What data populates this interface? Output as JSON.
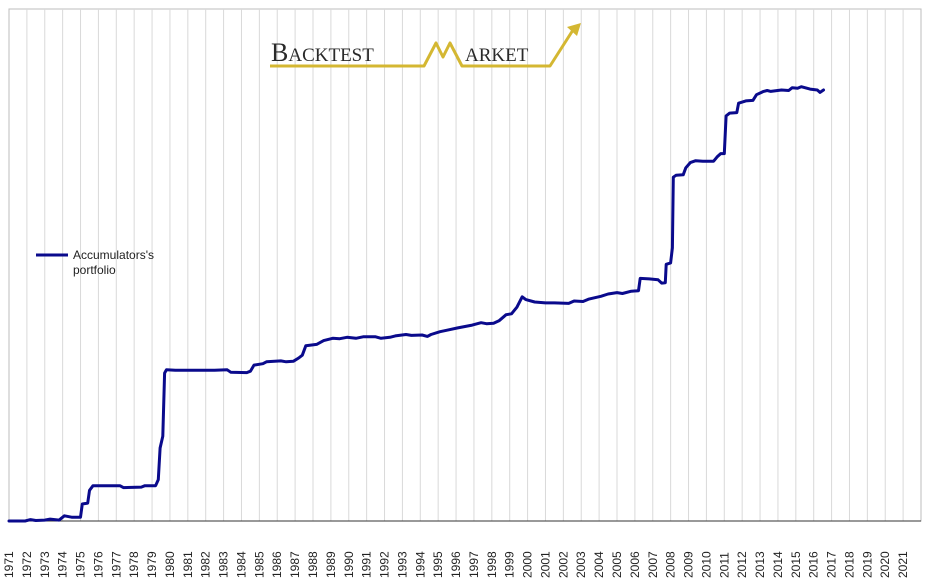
{
  "chart_data": {
    "type": "line",
    "title": "",
    "xlabel": "",
    "ylabel": "",
    "xlim": [
      1971,
      2022
    ],
    "ylim": [
      0,
      100
    ],
    "grid": {
      "vertical": true,
      "horizontal": false
    },
    "legend": {
      "placement": "left",
      "entries": [
        "Accumulators's",
        "portfolio"
      ]
    },
    "series_color": "#0a0a8c",
    "x_tick_labels": [
      "1971",
      "1972",
      "1973",
      "1974",
      "1975",
      "1976",
      "1977",
      "1978",
      "1979",
      "1980",
      "1981",
      "1982",
      "1983",
      "1984",
      "1985",
      "1986",
      "1987",
      "1988",
      "1989",
      "1990",
      "1991",
      "1992",
      "1993",
      "1994",
      "1995",
      "1996",
      "1997",
      "1998",
      "1999",
      "2000",
      "2001",
      "2002",
      "2003",
      "2004",
      "2005",
      "2006",
      "2007",
      "2008",
      "2009",
      "2010",
      "2011",
      "2012",
      "2013",
      "2014",
      "2015",
      "2016",
      "2017",
      "2018",
      "2019",
      "2020",
      "2021"
    ],
    "series": [
      {
        "name": "Accumulators's portfolio",
        "points": [
          [
            1971.0,
            0.0
          ],
          [
            1971.9,
            0.0
          ],
          [
            1972.2,
            0.3
          ],
          [
            1972.5,
            0.1
          ],
          [
            1973.0,
            0.2
          ],
          [
            1973.3,
            0.4
          ],
          [
            1973.8,
            0.2
          ],
          [
            1974.1,
            1.1
          ],
          [
            1974.5,
            0.8
          ],
          [
            1975.0,
            0.8
          ],
          [
            1975.1,
            3.6
          ],
          [
            1975.4,
            3.8
          ],
          [
            1975.5,
            6.5
          ],
          [
            1975.7,
            7.5
          ],
          [
            1977.2,
            7.5
          ],
          [
            1977.4,
            7.1
          ],
          [
            1978.4,
            7.2
          ],
          [
            1978.6,
            7.5
          ],
          [
            1979.2,
            7.5
          ],
          [
            1979.35,
            8.8
          ],
          [
            1979.45,
            15.5
          ],
          [
            1979.6,
            18.0
          ],
          [
            1979.7,
            31.4
          ],
          [
            1979.8,
            32.1
          ],
          [
            1980.3,
            32.0
          ],
          [
            1982.5,
            32.0
          ],
          [
            1983.2,
            32.1
          ],
          [
            1983.4,
            31.6
          ],
          [
            1984.3,
            31.5
          ],
          [
            1984.5,
            31.8
          ],
          [
            1984.7,
            33.1
          ],
          [
            1985.2,
            33.4
          ],
          [
            1985.4,
            33.8
          ],
          [
            1986.2,
            34.0
          ],
          [
            1986.5,
            33.8
          ],
          [
            1986.9,
            33.9
          ],
          [
            1987.2,
            34.6
          ],
          [
            1987.4,
            35.2
          ],
          [
            1987.6,
            37.2
          ],
          [
            1988.2,
            37.5
          ],
          [
            1988.6,
            38.3
          ],
          [
            1989.1,
            38.8
          ],
          [
            1989.5,
            38.7
          ],
          [
            1989.9,
            39.0
          ],
          [
            1990.4,
            38.8
          ],
          [
            1990.8,
            39.1
          ],
          [
            1991.5,
            39.1
          ],
          [
            1991.8,
            38.8
          ],
          [
            1992.3,
            39.0
          ],
          [
            1992.6,
            39.3
          ],
          [
            1993.2,
            39.6
          ],
          [
            1993.5,
            39.4
          ],
          [
            1994.1,
            39.5
          ],
          [
            1994.4,
            39.2
          ],
          [
            1994.6,
            39.6
          ],
          [
            1995.1,
            40.2
          ],
          [
            1995.5,
            40.5
          ],
          [
            1996.1,
            41.0
          ],
          [
            1996.5,
            41.3
          ],
          [
            1996.9,
            41.6
          ],
          [
            1997.4,
            42.1
          ],
          [
            1997.7,
            41.9
          ],
          [
            1998.1,
            42.0
          ],
          [
            1998.4,
            42.5
          ],
          [
            1998.8,
            43.8
          ],
          [
            1999.1,
            44.0
          ],
          [
            1999.4,
            45.4
          ],
          [
            1999.7,
            47.6
          ],
          [
            1999.9,
            47.0
          ],
          [
            2000.4,
            46.5
          ],
          [
            2001.0,
            46.3
          ],
          [
            2001.5,
            46.3
          ],
          [
            2002.3,
            46.2
          ],
          [
            2002.6,
            46.7
          ],
          [
            2003.1,
            46.6
          ],
          [
            2003.4,
            47.1
          ],
          [
            2004.1,
            47.7
          ],
          [
            2004.5,
            48.2
          ],
          [
            2005.0,
            48.5
          ],
          [
            2005.3,
            48.3
          ],
          [
            2005.8,
            48.8
          ],
          [
            2006.2,
            48.9
          ],
          [
            2006.3,
            51.5
          ],
          [
            2006.8,
            51.4
          ],
          [
            2007.3,
            51.2
          ],
          [
            2007.5,
            50.5
          ],
          [
            2007.7,
            50.6
          ],
          [
            2007.75,
            54.5
          ],
          [
            2008.0,
            54.8
          ],
          [
            2008.1,
            58.0
          ],
          [
            2008.15,
            73.0
          ],
          [
            2008.3,
            73.4
          ],
          [
            2008.7,
            73.5
          ],
          [
            2008.85,
            75.0
          ],
          [
            2009.1,
            76.1
          ],
          [
            2009.4,
            76.5
          ],
          [
            2009.8,
            76.4
          ],
          [
            2010.4,
            76.4
          ],
          [
            2010.6,
            77.3
          ],
          [
            2010.8,
            78.0
          ],
          [
            2011.0,
            78.0
          ],
          [
            2011.1,
            86.0
          ],
          [
            2011.3,
            86.6
          ],
          [
            2011.7,
            86.7
          ],
          [
            2011.8,
            88.7
          ],
          [
            2012.2,
            89.2
          ],
          [
            2012.6,
            89.3
          ],
          [
            2012.8,
            90.5
          ],
          [
            2013.2,
            91.2
          ],
          [
            2013.4,
            91.4
          ],
          [
            2013.6,
            91.2
          ],
          [
            2014.2,
            91.5
          ],
          [
            2014.6,
            91.4
          ],
          [
            2014.8,
            92.0
          ],
          [
            2015.1,
            91.9
          ],
          [
            2015.3,
            92.2
          ],
          [
            2015.8,
            91.7
          ],
          [
            2016.2,
            91.5
          ],
          [
            2016.35,
            91.0
          ],
          [
            2016.55,
            91.5
          ]
        ]
      }
    ]
  },
  "logo": {
    "word1_initial": "B",
    "word1_rest": "ACKTEST",
    "word2_rest": "ARKET",
    "gold_color": "#d4b732",
    "text_color": "#2a2a2a"
  }
}
